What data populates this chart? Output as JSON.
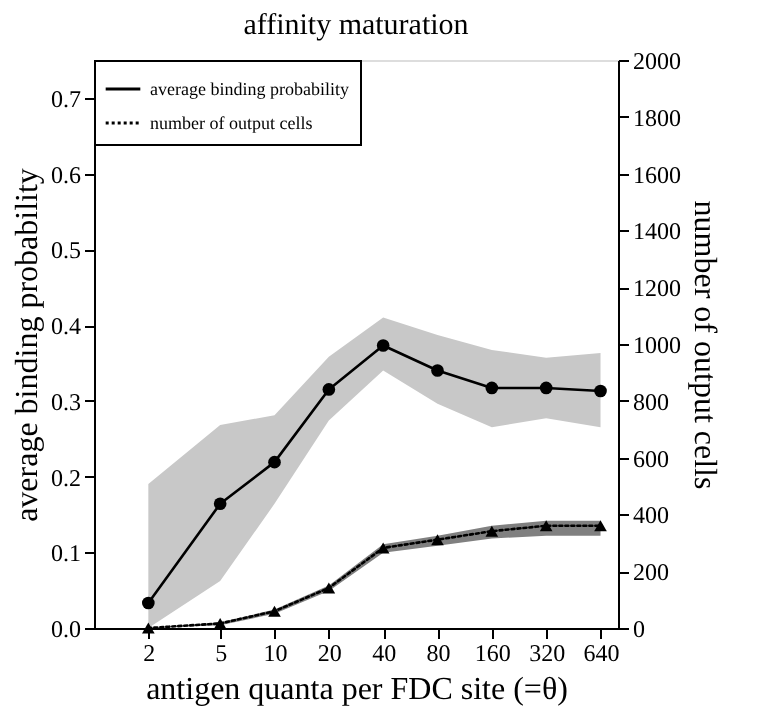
{
  "chart_data": {
    "type": "line",
    "title": "affinity maturation",
    "xlabel": "antigen quanta per FDC site (=θ)",
    "ylabel": "average binding probability",
    "y2label": "number of output cells",
    "x": [
      2,
      5,
      10,
      20,
      40,
      80,
      160,
      320,
      640
    ],
    "log": "x",
    "xlim": [
      1,
      800
    ],
    "xticks": [
      2,
      5,
      10,
      20,
      40,
      80,
      160,
      320,
      640
    ],
    "ylim": [
      0,
      0.75
    ],
    "yticks": [
      {
        "value": 0,
        "label": "0.0"
      },
      0.1,
      0.2,
      0.3,
      0.4,
      0.5,
      0.6,
      0.7
    ],
    "y2lim": [
      0,
      2000
    ],
    "y2ticks": [
      0,
      200,
      400,
      600,
      800,
      1000,
      1200,
      1400,
      1600,
      1800,
      2000
    ],
    "grid": false,
    "legend": "top left",
    "series": [
      {
        "name": "average binding probability",
        "color": "#000000",
        "marker": "circle",
        "line_style": "solid",
        "values": [
          0.033,
          0.164,
          0.219,
          0.315,
          0.373,
          0.34,
          0.317,
          0.317,
          0.313
        ],
        "lower": [
          0,
          0.062,
          0.164,
          0.274,
          0.34,
          0.296,
          0.265,
          0.277,
          0.265
        ],
        "upper": [
          0.19,
          0.268,
          0.281,
          0.358,
          0.41,
          0.387,
          0.367,
          0.357,
          0.363
        ]
      },
      {
        "name": "number of output cells",
        "color": "#000000",
        "marker": "triangle",
        "line_style": "dotted",
        "axis": "y2",
        "values": [
          0,
          16,
          59,
          141,
          282,
          311,
          341,
          360,
          360
        ],
        "lower": [
          0,
          10,
          50,
          130,
          265,
          290,
          315,
          325,
          325
        ],
        "upper": [
          0,
          20,
          65,
          150,
          295,
          325,
          360,
          378,
          378
        ]
      }
    ]
  }
}
